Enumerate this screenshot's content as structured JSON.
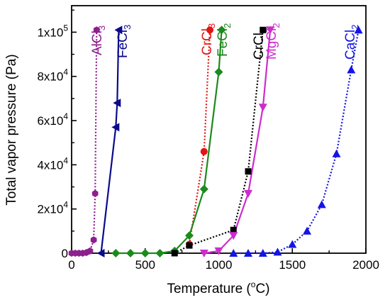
{
  "chart_data": {
    "type": "line",
    "xlabel": "Temperature (°C)",
    "xlabel_parts": {
      "main": "Temperature (",
      "sup": "o",
      "end": "C)"
    },
    "ylabel": "Total vapor pressure (Pa)",
    "xlim": [
      0,
      2000
    ],
    "ylim": [
      0,
      112000
    ],
    "grid": false,
    "x_ticks": [
      {
        "value": 0,
        "label": "0"
      },
      {
        "value": 500,
        "label": "500"
      },
      {
        "value": 1000,
        "label": "1000"
      },
      {
        "value": 1500,
        "label": "1500"
      },
      {
        "value": 2000,
        "label": "2000"
      }
    ],
    "y_ticks": [
      {
        "value": 0,
        "mant": "0",
        "exp": ""
      },
      {
        "value": 20000,
        "mant": "2x10",
        "exp": "4"
      },
      {
        "value": 40000,
        "mant": "4x10",
        "exp": "4"
      },
      {
        "value": 60000,
        "mant": "6x10",
        "exp": "4"
      },
      {
        "value": 80000,
        "mant": "8x10",
        "exp": "4"
      },
      {
        "value": 100000,
        "mant": "1x10",
        "exp": "5"
      }
    ],
    "series": [
      {
        "name": "AlCl3",
        "label_base": "AlCl",
        "label_sub": "3",
        "color": "#8e1e8e",
        "marker": "hexagon",
        "dash": "2,2.5",
        "x": [
          0,
          25,
          50,
          75,
          100,
          125,
          150,
          160,
          170
        ],
        "y": [
          0,
          0,
          0,
          0,
          300,
          1000,
          6000,
          27000,
          101000
        ]
      },
      {
        "name": "FeCl3",
        "label_base": "FeCl",
        "label_sub": "3",
        "color": "#0a0a8c",
        "marker": "triangle-left",
        "dash": "",
        "x": [
          200,
          300,
          310,
          320
        ],
        "y": [
          0,
          57000,
          68000,
          101000
        ]
      },
      {
        "name": "CrCl3",
        "label_base": "CrCl",
        "label_sub": "3",
        "color": "#e31414",
        "marker": "circle",
        "dash": "2,2.5",
        "x": [
          800,
          900,
          940
        ],
        "y": [
          4000,
          46000,
          101000
        ]
      },
      {
        "name": "FeCl2",
        "label_base": "FeCl",
        "label_sub": "2",
        "color": "#1c8a1c",
        "marker": "diamond",
        "dash": "",
        "x": [
          300,
          400,
          500,
          600,
          700,
          800,
          900,
          1000,
          1020
        ],
        "y": [
          0,
          0,
          0,
          0,
          1000,
          8000,
          29000,
          82000,
          101000
        ]
      },
      {
        "name": "CrCl2",
        "label_base": "CrCl",
        "label_sub": "2",
        "color": "#000000",
        "marker": "square",
        "dash": "2,2.5",
        "x": [
          700,
          800,
          1100,
          1200,
          1300
        ],
        "y": [
          0,
          3500,
          10500,
          37000,
          101000
        ]
      },
      {
        "name": "MgCl2",
        "label_base": "MgCl",
        "label_sub": "2",
        "color": "#cc2ccc",
        "marker": "triangle-down",
        "dash": "",
        "x": [
          900,
          1000,
          1100,
          1200,
          1300,
          1350
        ],
        "y": [
          0,
          1000,
          8000,
          27000,
          66000,
          101000
        ]
      },
      {
        "name": "CaCl2",
        "label_base": "CaCl",
        "label_sub": "2",
        "color": "#1414e6",
        "marker": "triangle-up",
        "dash": "2,2.5",
        "x": [
          1100,
          1200,
          1300,
          1400,
          1500,
          1600,
          1700,
          1800,
          1900,
          1950
        ],
        "y": [
          0,
          0,
          0,
          500,
          4000,
          10000,
          22000,
          45000,
          83000,
          101000
        ]
      }
    ]
  }
}
